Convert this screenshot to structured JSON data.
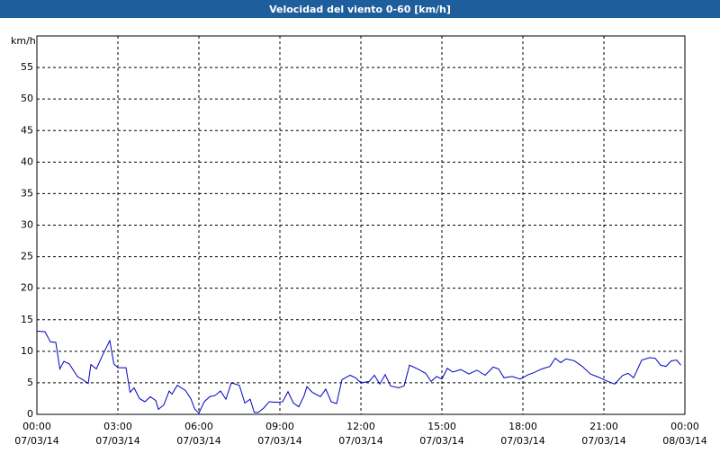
{
  "chart_data": {
    "type": "line",
    "title": "Velocidad del viento 0-60 [km/h]",
    "y_label": "km/h",
    "x": [
      0,
      0.3,
      0.5,
      0.7,
      0.85,
      1.0,
      1.2,
      1.5,
      1.7,
      1.9,
      2.0,
      2.2,
      2.5,
      2.7,
      2.85,
      3.0,
      3.3,
      3.45,
      3.6,
      3.8,
      4.0,
      4.2,
      4.4,
      4.5,
      4.7,
      4.9,
      5.0,
      5.2,
      5.5,
      5.7,
      5.85,
      6.0,
      6.2,
      6.4,
      6.6,
      6.8,
      7.0,
      7.2,
      7.5,
      7.7,
      7.9,
      8.05,
      8.2,
      8.4,
      8.6,
      8.9,
      9.1,
      9.3,
      9.5,
      9.7,
      9.9,
      10.0,
      10.2,
      10.5,
      10.7,
      10.9,
      11.1,
      11.3,
      11.6,
      11.8,
      12.0,
      12.3,
      12.5,
      12.7,
      12.9,
      13.1,
      13.4,
      13.6,
      13.8,
      14.1,
      14.4,
      14.6,
      14.8,
      15.0,
      15.2,
      15.4,
      15.7,
      16.0,
      16.3,
      16.6,
      16.9,
      17.1,
      17.3,
      17.6,
      17.9,
      18.2,
      18.4,
      18.7,
      19.0,
      19.2,
      19.4,
      19.6,
      19.9,
      20.2,
      20.5,
      20.8,
      21.1,
      21.4,
      21.7,
      21.9,
      22.1,
      22.4,
      22.7,
      22.9,
      23.1,
      23.3,
      23.5,
      23.7,
      23.85
    ],
    "series": [
      {
        "name": "Velocidad del viento",
        "color": "#0000c0",
        "values": [
          13.2,
          13.1,
          11.5,
          11.4,
          7.2,
          8.4,
          8,
          6,
          5.5,
          4.9,
          7.9,
          7.2,
          10,
          11.7,
          8,
          7.4,
          7.4,
          3.5,
          4.2,
          2.5,
          2,
          2.8,
          2.2,
          0.8,
          1.5,
          3.7,
          3.2,
          4.6,
          3.8,
          2.5,
          0.8,
          0.2,
          2,
          2.8,
          3,
          3.7,
          2.4,
          5,
          4.6,
          1.8,
          2.4,
          0.3,
          0.3,
          1,
          2,
          1.9,
          2,
          3.6,
          1.8,
          1.2,
          3,
          4.4,
          3.5,
          2.8,
          4,
          2,
          1.7,
          5.5,
          6.2,
          5.8,
          5,
          5.2,
          6.2,
          4.8,
          6.3,
          4.5,
          4.2,
          4.5,
          7.8,
          7.2,
          6.5,
          5.2,
          6,
          5.6,
          7.3,
          6.7,
          7.1,
          6.4,
          7,
          6.2,
          7.5,
          7.2,
          5.8,
          6,
          5.6,
          6.3,
          6.6,
          7.2,
          7.6,
          8.9,
          8.2,
          8.8,
          8.5,
          7.6,
          6.4,
          5.9,
          5.3,
          4.8,
          6.2,
          6.5,
          5.8,
          8.6,
          9,
          8.9,
          7.8,
          7.6,
          8.5,
          8.6,
          7.8
        ]
      }
    ],
    "xlim": [
      0,
      24
    ],
    "xticks": [
      {
        "value": 0,
        "label": "00:00",
        "date": "07/03/14"
      },
      {
        "value": 3,
        "label": "03:00",
        "date": "07/03/14"
      },
      {
        "value": 6,
        "label": "06:00",
        "date": "07/03/14"
      },
      {
        "value": 9,
        "label": "09:00",
        "date": "07/03/14"
      },
      {
        "value": 12,
        "label": "12:00",
        "date": "07/03/14"
      },
      {
        "value": 15,
        "label": "15:00",
        "date": "07/03/14"
      },
      {
        "value": 18,
        "label": "18:00",
        "date": "07/03/14"
      },
      {
        "value": 21,
        "label": "21:00",
        "date": "07/03/14"
      },
      {
        "value": 24,
        "label": "00:00",
        "date": "08/03/14"
      }
    ],
    "ylim": [
      0,
      60
    ],
    "yticks": [
      0,
      5,
      10,
      15,
      20,
      25,
      30,
      35,
      40,
      45,
      50,
      55
    ],
    "grid": true
  }
}
